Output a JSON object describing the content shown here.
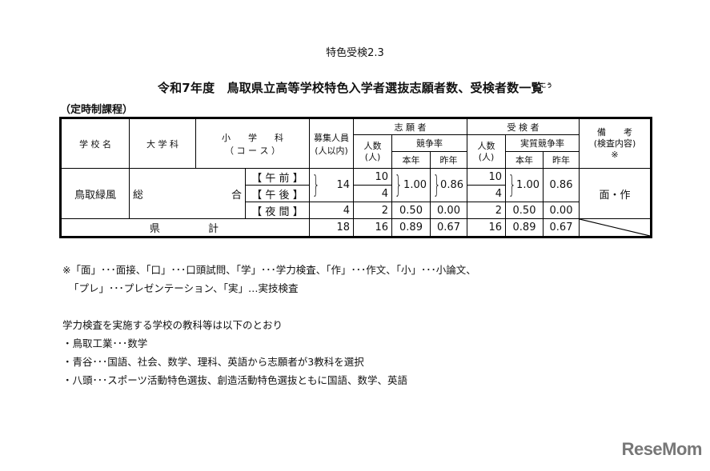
{
  "subtitle": "特色受検2.3",
  "title": "令和7年度　鳥取県立高等学校特色入学者選抜志願者数、受検者数一覧",
  "title_ruby": "こう",
  "course": "（定時制課程）",
  "header": {
    "school": "学 校 名",
    "major": "大 学 科",
    "minor_line1": "小　　学　　科",
    "minor_line2": "（ コ ー ス ）",
    "capacity_line1": "募集人員",
    "capacity_line2": "(人以内)",
    "applicants": "志 願 者",
    "examinees": "受 検 者",
    "count_line1": "人数",
    "count_line2": "(人)",
    "ratio": "競争率",
    "real_ratio": "実質競争率",
    "this_year": "本年",
    "last_year": "昨年",
    "remarks_line1": "備　　考",
    "remarks_line2": "(検査内容)",
    "remarks_line3": "※"
  },
  "rows": {
    "school": "鳥取緑風",
    "major_left": "総",
    "major_right": "合",
    "sessions": [
      "【 午 前 】",
      "【 午 後 】",
      "【 夜 間 】"
    ],
    "capacity_day": "14",
    "capacity_night": "4",
    "app_counts": [
      "10",
      "4",
      "2"
    ],
    "app_ratio_day": "1.00",
    "app_last_day": "0.86",
    "app_ratio_night": "0.50",
    "app_last_night": "0.00",
    "exam_counts": [
      "10",
      "4",
      "2"
    ],
    "exam_ratio_day": "1.00",
    "exam_last_day": "0.86",
    "exam_ratio_night": "0.50",
    "exam_last_night": "0.00",
    "remarks": "面・作"
  },
  "total": {
    "label_left": "県",
    "label_right": "計",
    "capacity": "18",
    "app_count": "16",
    "app_ratio": "0.89",
    "app_last": "0.67",
    "exam_count": "16",
    "exam_ratio": "0.89",
    "exam_last": "0.67"
  },
  "notes": {
    "legend_line1": "※「面」･･･面接、「口」･･･口頭試問、「学」･･･学力検査、「作」･･･作文、「小」･･･小論文、",
    "legend_line2": "「プレ」･･･プレゼンテーション、「実」…実技検査",
    "subjects_heading": "学力検査を実施する学校の教科等は以下のとおり",
    "subjects": [
      "・鳥取工業･･･数学",
      "・青谷･･･国語、社会、数学、理科、英語から志願者が3教科を選択",
      "・八頭･･･スポーツ活動特色選抜、創造活動特色選抜ともに国語、数学、英語"
    ]
  },
  "logo": "ReseMom"
}
